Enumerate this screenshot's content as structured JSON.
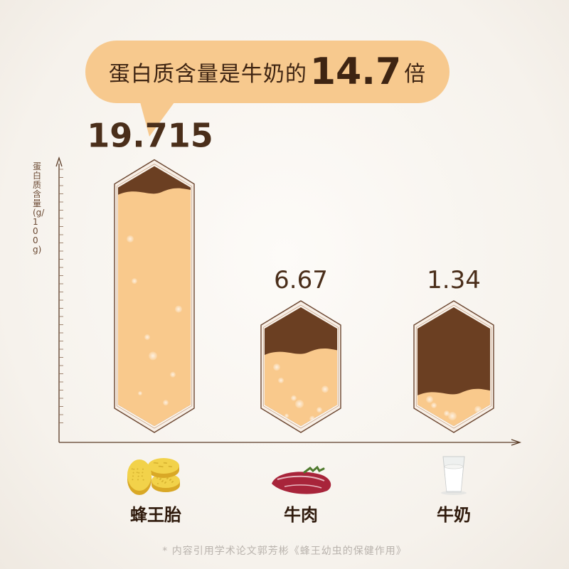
{
  "callout": {
    "prefix": "蛋白质含量是牛奶的",
    "number": "14.7",
    "suffix": "倍"
  },
  "chart_data": {
    "type": "bar",
    "ylabel": "蛋白质含量(g/100g)",
    "categories": [
      "蜂王胎",
      "牛肉",
      "牛奶"
    ],
    "values": [
      19.715,
      6.67,
      1.34
    ],
    "value_labels": [
      "19.715",
      "6.67",
      "1.34"
    ],
    "ylim": [
      0,
      22
    ],
    "grid": false
  },
  "icons": [
    "bee-pupa-tablets-icon",
    "beef-steak-icon",
    "milk-glass-icon"
  ],
  "colors": {
    "callout": "#f7c98e",
    "fill_light": "#f9c98c",
    "fill_dark": "#6b3f22",
    "outline": "#f8efe6",
    "axis": "#5a3b26"
  },
  "footnote": "* 内容引用学术论文郭芳彬《蜂王幼虫的保健作用》"
}
